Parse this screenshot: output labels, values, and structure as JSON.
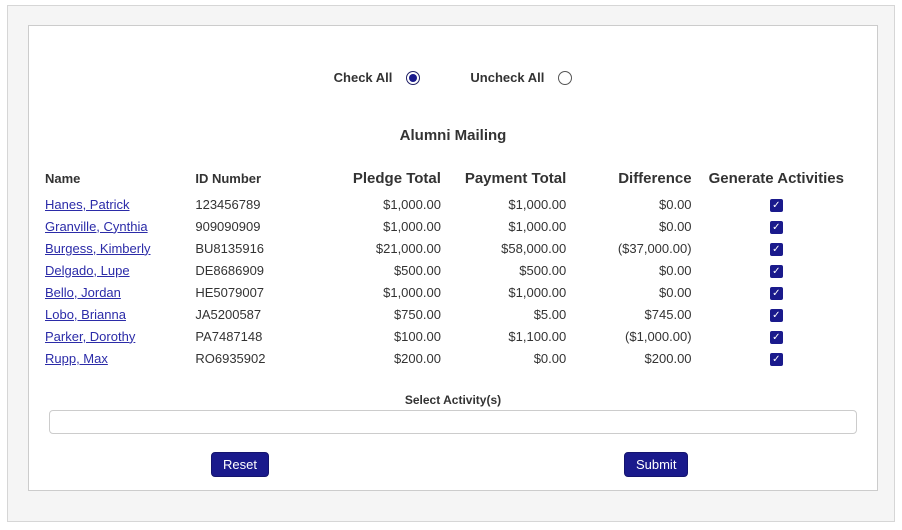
{
  "controls": {
    "check_all_label": "Check All",
    "uncheck_all_label": "Uncheck All",
    "check_all_selected": true,
    "uncheck_all_selected": false
  },
  "title": "Alumni Mailing",
  "table": {
    "headers": {
      "name": "Name",
      "id_number": "ID Number",
      "pledge_total": "Pledge Total",
      "payment_total": "Payment Total",
      "difference": "Difference",
      "generate_activities": "Generate Activities"
    },
    "rows": [
      {
        "name": "Hanes, Patrick",
        "id": "123456789",
        "pledge": "$1,000.00",
        "payment": "$1,000.00",
        "difference": "$0.00",
        "checked": true
      },
      {
        "name": "Granville, Cynthia",
        "id": "909090909",
        "pledge": "$1,000.00",
        "payment": "$1,000.00",
        "difference": "$0.00",
        "checked": true
      },
      {
        "name": "Burgess, Kimberly",
        "id": "BU8135916",
        "pledge": "$21,000.00",
        "payment": "$58,000.00",
        "difference": "($37,000.00)",
        "checked": true
      },
      {
        "name": "Delgado, Lupe",
        "id": "DE8686909",
        "pledge": "$500.00",
        "payment": "$500.00",
        "difference": "$0.00",
        "checked": true
      },
      {
        "name": "Bello, Jordan",
        "id": "HE5079007",
        "pledge": "$1,000.00",
        "payment": "$1,000.00",
        "difference": "$0.00",
        "checked": true
      },
      {
        "name": "Lobo, Brianna",
        "id": "JA5200587",
        "pledge": "$750.00",
        "payment": "$5.00",
        "difference": "$745.00",
        "checked": true
      },
      {
        "name": "Parker, Dorothy",
        "id": "PA7487148",
        "pledge": "$100.00",
        "payment": "$1,100.00",
        "difference": "($1,000.00)",
        "checked": true
      },
      {
        "name": "Rupp, Max",
        "id": "RO6935902",
        "pledge": "$200.00",
        "payment": "$0.00",
        "difference": "$200.00",
        "checked": true
      }
    ]
  },
  "activity": {
    "label": "Select Activity(s)",
    "value": ""
  },
  "buttons": {
    "reset_label": "Reset",
    "submit_label": "Submit"
  },
  "colors": {
    "accent_navy": "#1a1a8c",
    "link_blue": "#2b2ba8",
    "panel_border": "#cccccc",
    "outer_bg": "#f5f5f5"
  },
  "icons": {
    "checkmark": "✓"
  }
}
